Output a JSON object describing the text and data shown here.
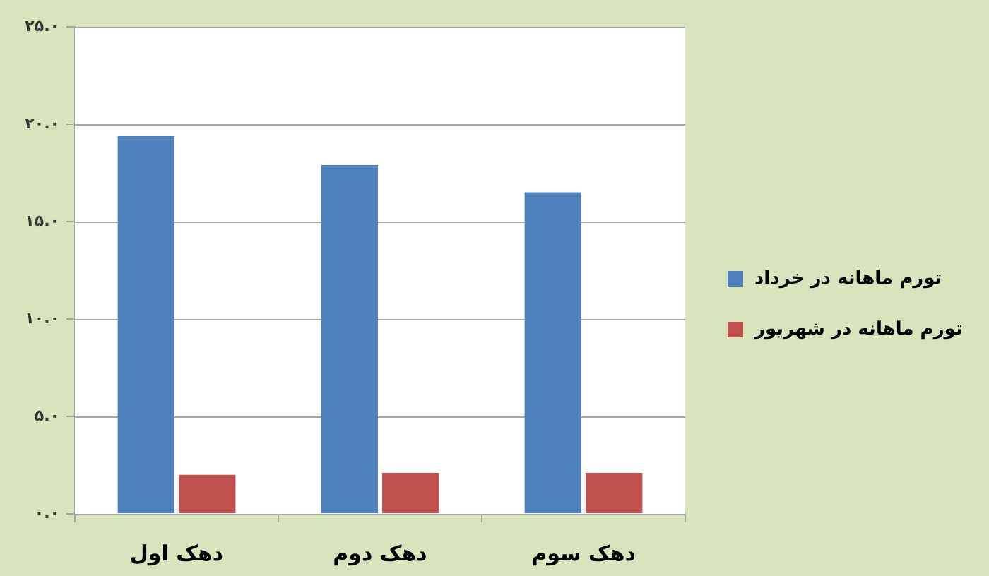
{
  "chart_data": {
    "type": "bar",
    "categories": [
      "دهک اول",
      "دهک دوم",
      "دهک سوم"
    ],
    "series": [
      {
        "name": "تورم ماهانه در خرداد",
        "color": "#4f81bd",
        "values": [
          19.4,
          17.9,
          16.5
        ]
      },
      {
        "name": "تورم ماهانه در شهریور",
        "color": "#c0504d",
        "values": [
          2.0,
          2.1,
          2.1
        ]
      }
    ],
    "ylim": [
      0,
      25
    ],
    "yticks": [
      {
        "value": 0,
        "label": "۰.۰"
      },
      {
        "value": 5,
        "label": "۵.۰"
      },
      {
        "value": 10,
        "label": "۱۰.۰"
      },
      {
        "value": 15,
        "label": "۱۵.۰"
      },
      {
        "value": 20,
        "label": "۲۰.۰"
      },
      {
        "value": 25,
        "label": "۲۵.۰"
      }
    ],
    "grid": "y",
    "legend": "right"
  }
}
